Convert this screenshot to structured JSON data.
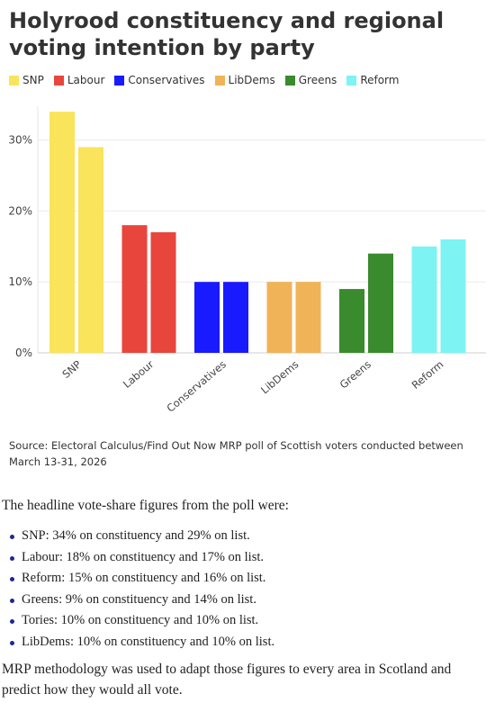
{
  "title": "Holyrood constituency and regional voting intention by party",
  "legend": [
    {
      "label": "SNP",
      "color": "#f9e45b"
    },
    {
      "label": "Labour",
      "color": "#e8453c"
    },
    {
      "label": "Conservatives",
      "color": "#1a1aff"
    },
    {
      "label": "LibDems",
      "color": "#f0b357"
    },
    {
      "label": "Greens",
      "color": "#3a8a2e"
    },
    {
      "label": "Reform",
      "color": "#7df3f3"
    }
  ],
  "chart_data": {
    "type": "bar",
    "categories": [
      "SNP",
      "Labour",
      "Conservatives",
      "LibDems",
      "Greens",
      "Reform"
    ],
    "values_left": [
      34,
      18,
      10,
      10,
      9,
      15
    ],
    "values_right": [
      29,
      17,
      10,
      10,
      14,
      16
    ],
    "ylim": [
      0,
      35
    ],
    "yticks": [
      0,
      10,
      20,
      30
    ],
    "ytick_labels": [
      "0%",
      "10%",
      "20%",
      "30%"
    ],
    "colors": [
      "#f9e45b",
      "#e8453c",
      "#1a1aff",
      "#f0b357",
      "#3a8a2e",
      "#7df3f3"
    ],
    "grid": true
  },
  "source": "Source: Electoral Calculus/Find Out Now MRP poll of Scottish voters conducted between March 13-31, 2026",
  "article": {
    "intro": "The headline vote-share figures from the poll were:",
    "bullets": [
      "SNP: 34% on constituency and 29% on list.",
      "Labour: 18% on constituency and 17% on list.",
      "Reform: 15% on constituency and 16% on list.",
      "Greens: 9% on constituency and 14% on list.",
      "Tories: 10% on constituency and 10% on list.",
      "LibDems: 10% on constituency and 10% on list."
    ],
    "outro": "MRP methodology was used to adapt those figures to every area in Scotland and predict how they would all vote."
  }
}
